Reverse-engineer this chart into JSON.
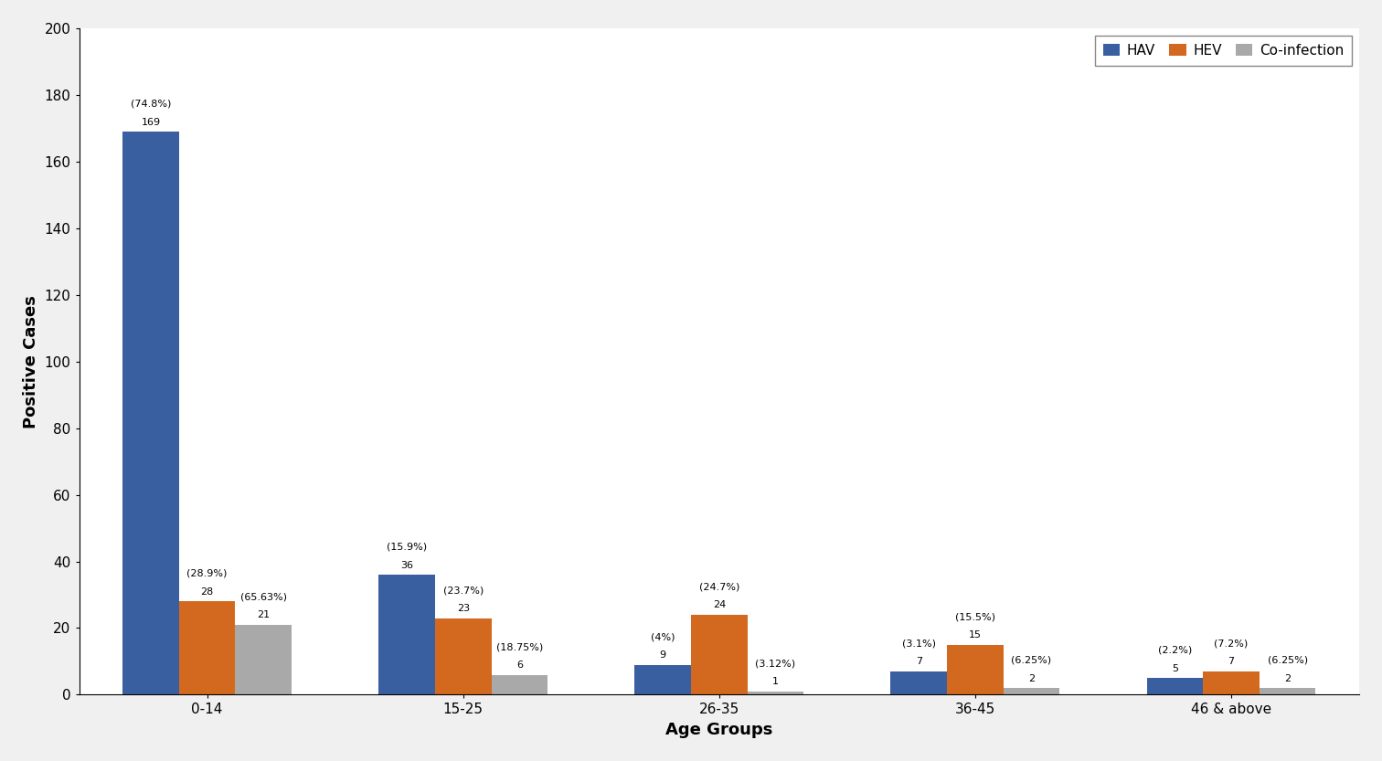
{
  "categories": [
    "0-14",
    "15-25",
    "26-35",
    "36-45",
    "46 & above"
  ],
  "hav_values": [
    169,
    36,
    9,
    7,
    5
  ],
  "hev_values": [
    28,
    23,
    24,
    15,
    7
  ],
  "coinfection_values": [
    21,
    6,
    1,
    2,
    2
  ],
  "hav_labels_line1": [
    "169",
    "36",
    "9",
    "7",
    "5"
  ],
  "hav_labels_line2": [
    "(74.8%)",
    "(15.9%)",
    "(4%)",
    "(3.1%)",
    "(2.2%)"
  ],
  "hev_labels_line1": [
    "28",
    "23",
    "24",
    "15",
    "7"
  ],
  "hev_labels_line2": [
    "(28.9%)",
    "(23.7%)",
    "(24.7%)",
    "(15.5%)",
    "(7.2%)"
  ],
  "coi_labels_line1": [
    "21",
    "6",
    "1",
    "2",
    "2"
  ],
  "coi_labels_line2": [
    "(65.63%)",
    "(18.75%)",
    "(3.12%)",
    "(6.25%)",
    "(6.25%)"
  ],
  "hav_color": "#3A5FA0",
  "hev_color": "#D2691E",
  "coinfection_color": "#A9A9A9",
  "ylabel": "Positive Cases",
  "xlabel": "Age Groups",
  "legend_labels": [
    "HAV",
    "HEV",
    "Co-infection"
  ],
  "ylim": [
    0,
    200
  ],
  "yticks": [
    0,
    20,
    40,
    60,
    80,
    100,
    120,
    140,
    160,
    180,
    200
  ],
  "bar_width": 0.22,
  "label_fontsize": 8,
  "axis_label_fontsize": 13,
  "tick_fontsize": 11,
  "legend_fontsize": 11,
  "background_color": "#ffffff",
  "outer_bg": "#f0f0f0"
}
